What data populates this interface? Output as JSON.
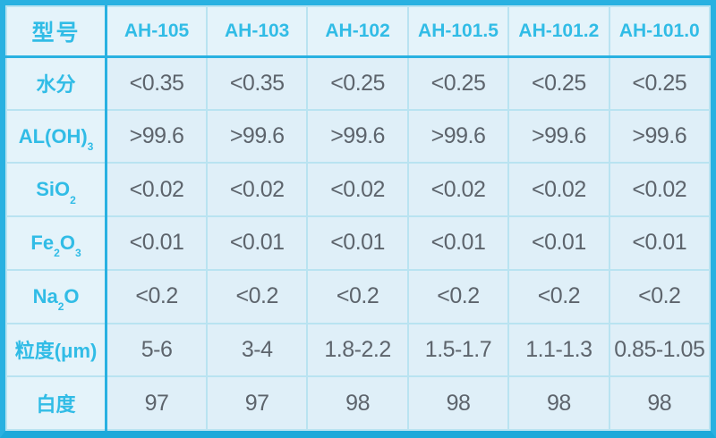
{
  "colors": {
    "accent": "#29b1e1",
    "accent_dark": "#1ca9da",
    "grid_line": "#b9e3f1",
    "cell_background": "#dfeff8",
    "label_background": "#e4f3fa",
    "cyan_text": "#31bce6",
    "value_text": "#5d646c"
  },
  "table": {
    "corner_label": "型号",
    "columns": [
      "AH-105",
      "AH-103",
      "AH-102",
      "AH-101.5",
      "AH-101.2",
      "AH-101.0"
    ],
    "rows": [
      {
        "label_parts": [
          {
            "text": "水分"
          }
        ],
        "values": [
          "<0.35",
          "<0.35",
          "<0.25",
          "<0.25",
          "<0.25",
          "<0.25"
        ]
      },
      {
        "label_parts": [
          {
            "text": "AL(OH)"
          },
          {
            "text": "3",
            "sub": true
          }
        ],
        "values": [
          ">99.6",
          ">99.6",
          ">99.6",
          ">99.6",
          ">99.6",
          ">99.6"
        ]
      },
      {
        "label_parts": [
          {
            "text": "SiO"
          },
          {
            "text": "2",
            "sub": true
          }
        ],
        "values": [
          "<0.02",
          "<0.02",
          "<0.02",
          "<0.02",
          "<0.02",
          "<0.02"
        ]
      },
      {
        "label_parts": [
          {
            "text": "Fe"
          },
          {
            "text": "2",
            "sub": true
          },
          {
            "text": "O"
          },
          {
            "text": "3",
            "sub": true
          }
        ],
        "values": [
          "<0.01",
          "<0.01",
          "<0.01",
          "<0.01",
          "<0.01",
          "<0.01"
        ]
      },
      {
        "label_parts": [
          {
            "text": "Na"
          },
          {
            "text": "2",
            "sub": true
          },
          {
            "text": "O"
          }
        ],
        "values": [
          "<0.2",
          "<0.2",
          "<0.2",
          "<0.2",
          "<0.2",
          "<0.2"
        ]
      },
      {
        "label_parts": [
          {
            "text": "粒度(μm)"
          }
        ],
        "values": [
          "5-6",
          "3-4",
          "1.8-2.2",
          "1.5-1.7",
          "1.1-1.3",
          "0.85-1.05"
        ]
      },
      {
        "label_parts": [
          {
            "text": "白度"
          }
        ],
        "values": [
          "97",
          "97",
          "98",
          "98",
          "98",
          "98"
        ]
      }
    ]
  },
  "chart_data": {
    "type": "table",
    "title": "",
    "columns": [
      "型号",
      "AH-105",
      "AH-103",
      "AH-102",
      "AH-101.5",
      "AH-101.2",
      "AH-101.0"
    ],
    "rows": [
      [
        "水分",
        "<0.35",
        "<0.35",
        "<0.25",
        "<0.25",
        "<0.25",
        "<0.25"
      ],
      [
        "AL(OH)3",
        ">99.6",
        ">99.6",
        ">99.6",
        ">99.6",
        ">99.6",
        ">99.6"
      ],
      [
        "SiO2",
        "<0.02",
        "<0.02",
        "<0.02",
        "<0.02",
        "<0.02",
        "<0.02"
      ],
      [
        "Fe2O3",
        "<0.01",
        "<0.01",
        "<0.01",
        "<0.01",
        "<0.01",
        "<0.01"
      ],
      [
        "Na2O",
        "<0.2",
        "<0.2",
        "<0.2",
        "<0.2",
        "<0.2",
        "<0.2"
      ],
      [
        "粒度(μm)",
        "5-6",
        "3-4",
        "1.8-2.2",
        "1.5-1.7",
        "1.1-1.3",
        "0.85-1.05"
      ],
      [
        "白度",
        "97",
        "97",
        "98",
        "98",
        "98",
        "98"
      ]
    ],
    "layout_hints": {
      "header_row": true,
      "header_column": true,
      "grid": true,
      "accent_color": "#29b1e1"
    }
  }
}
